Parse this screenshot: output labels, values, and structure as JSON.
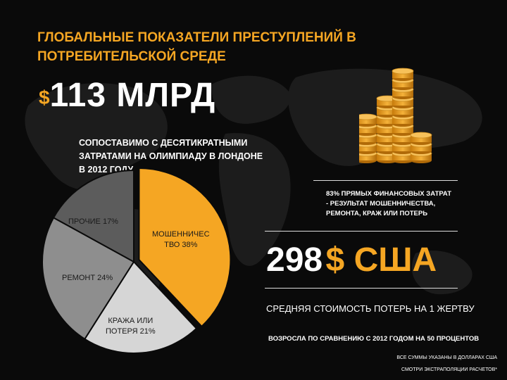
{
  "title": "ГЛОБАЛЬНЫЕ ПОКАЗАТЕЛИ ПРЕСТУПЛЕНИЙ В ПОТРЕБИТЕЛЬСКОЙ СРЕДЕ",
  "total": {
    "currency": "$",
    "amount": "113 МЛРД"
  },
  "comparison_text": "СОПОСТАВИМО С ДЕСЯТИКРАТНЫМИ ЗАТРАТАМИ НА ОЛИМПИАДУ В ЛОНДОНЕ В 2012 ГОДУ",
  "financial_note": "83% ПРЯМЫХ ФИНАНСОВЫХ ЗАТРАТ - РЕЗУЛЬТАТ МОШЕННИЧЕСТВА, РЕМОНТА, КРАЖ ИЛИ ПОТЕРЬ",
  "per_victim": {
    "amount": "298",
    "currency": "$ США"
  },
  "avg_loss_text": "СРЕДНЯЯ СТОИМОСТЬ ПОТЕРЬ НА 1 ЖЕРТВУ",
  "growth_text": "ВОЗРОСЛА ПО СРАВНЕНИЮ С 2012 ГОДОМ НА 50 ПРОЦЕНТОВ",
  "footnotes": [
    "ВСЕ СУММЫ УКАЗАНЫ В ДОЛЛАРАХ США",
    "СМОТРИ ЭКСТРАПОЛЯЦИИ РАСЧЕТОВ*"
  ],
  "colors": {
    "accent": "#f5a623",
    "background": "#0a0a0a"
  },
  "chart_data": {
    "type": "pie",
    "title": "",
    "slices": [
      {
        "label": "МОШЕННИЧЕСТВО 38%",
        "label_display": "МОШЕННИЧЕС\nТВО 38%",
        "value": 38,
        "color": "#f5a623"
      },
      {
        "label": "КРАЖА ИЛИ ПОТЕРЯ 21%",
        "label_display": "КРАЖА ИЛИ\nПОТЕРЯ 21%",
        "value": 21,
        "color": "#d6d6d6"
      },
      {
        "label": "РЕМОНТ 24%",
        "label_display": "РЕМОНТ 24%",
        "value": 24,
        "color": "#8e8e8e"
      },
      {
        "label": "ПРОЧИЕ 17%",
        "label_display": "ПРОЧИЕ 17%",
        "value": 17,
        "color": "#5c5c5c"
      }
    ]
  }
}
